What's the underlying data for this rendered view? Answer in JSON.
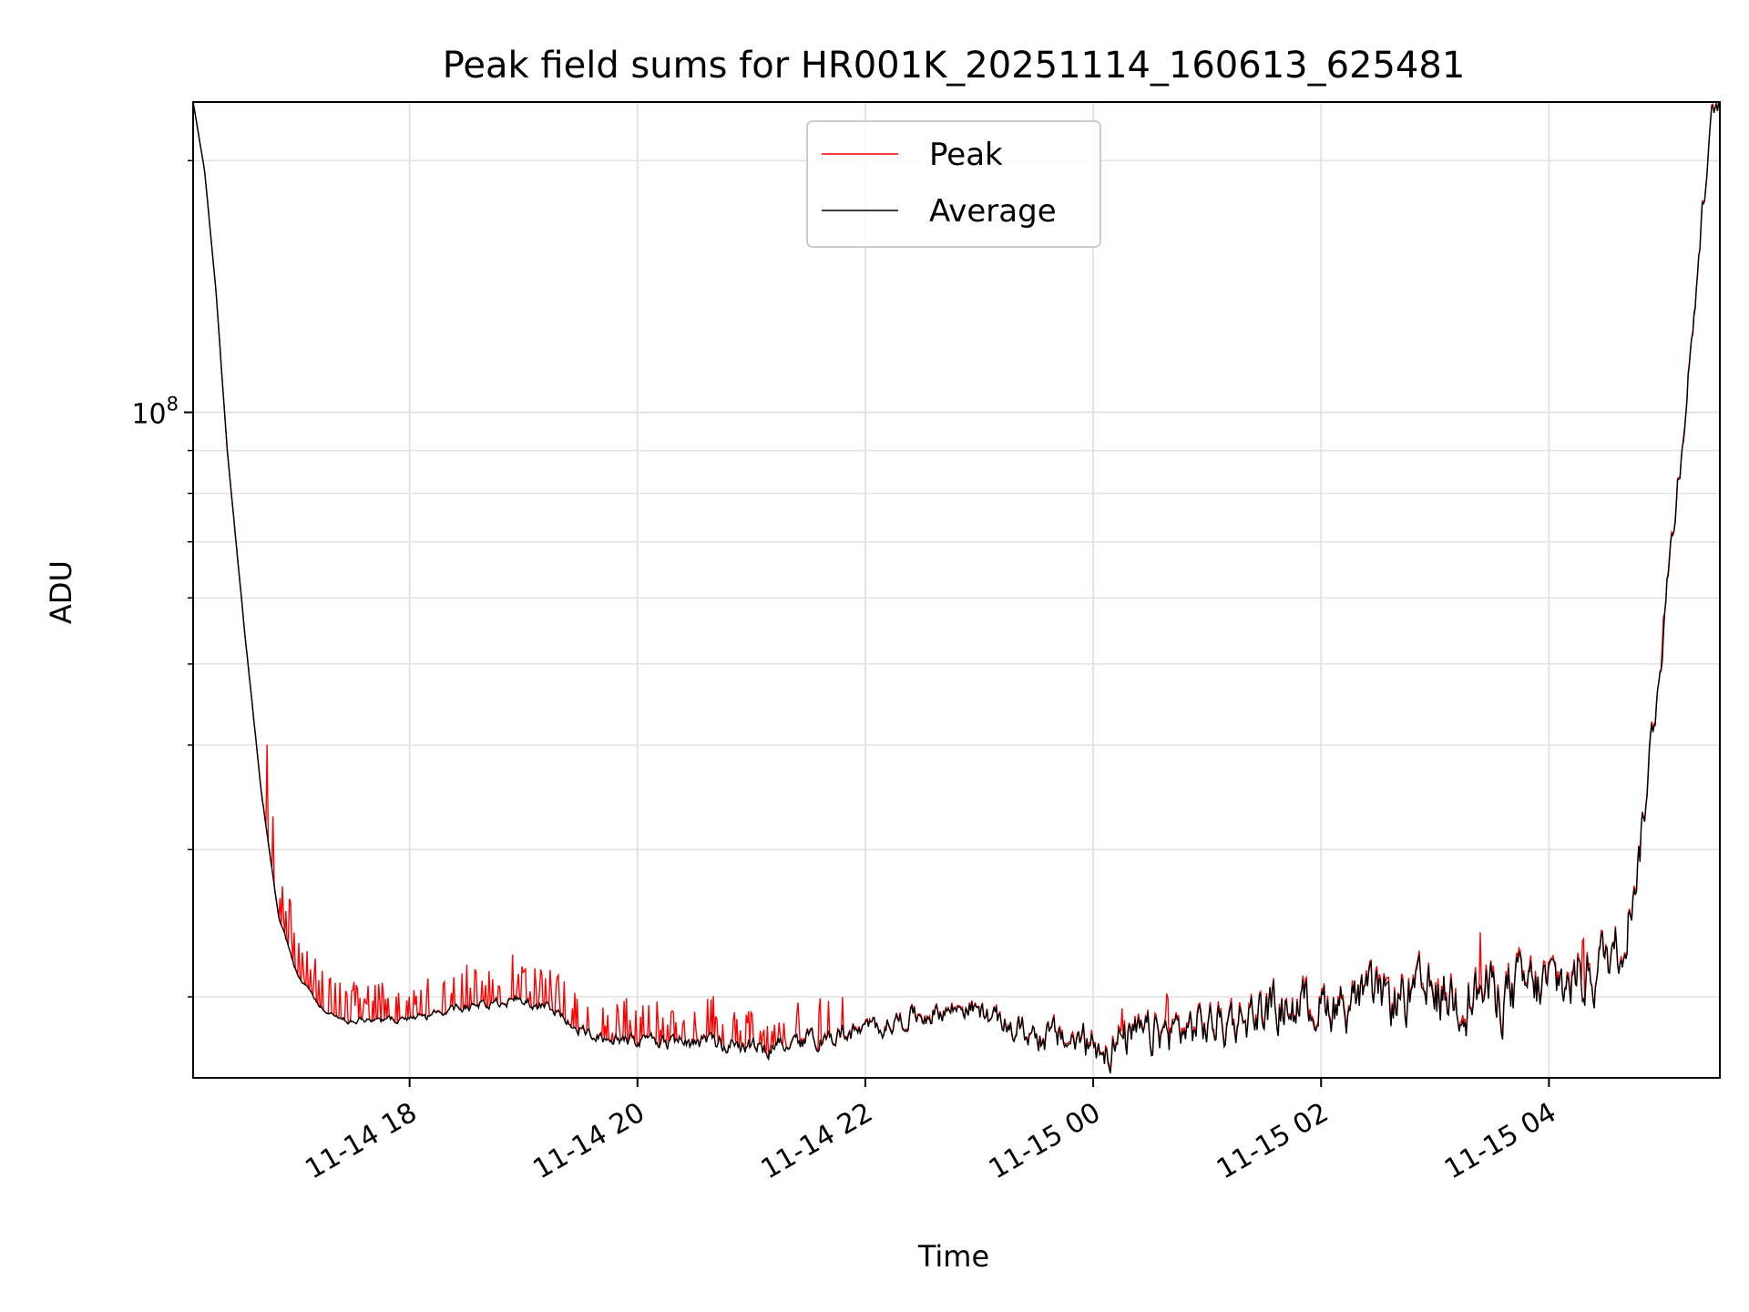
{
  "chart_data": {
    "type": "line",
    "title": "Peak field sums for HR001K_20251114_160613_625481",
    "xlabel": "Time",
    "ylabel": "ADU",
    "yscale": "log",
    "grid": true,
    "legend_position": "top-center",
    "x_unit": "hours since 2025-11-14 16:06",
    "xlim": [
      0.0,
      13.4
    ],
    "ylim": [
      16000000.0,
      235000000.0
    ],
    "x_ticks": [
      {
        "label": "11-14 18",
        "x": 1.9
      },
      {
        "label": "11-14 20",
        "x": 3.9
      },
      {
        "label": "11-14 22",
        "x": 5.9
      },
      {
        "label": "11-15 00",
        "x": 7.9
      },
      {
        "label": "11-15 02",
        "x": 9.9
      },
      {
        "label": "11-15 04",
        "x": 11.9
      }
    ],
    "y_major_ticks": [
      {
        "value": 100000000,
        "base": "10",
        "exp": "8"
      }
    ],
    "y_minor_ticks": [
      20000000,
      30000000,
      40000000,
      50000000,
      60000000,
      70000000,
      80000000,
      90000000,
      200000000
    ],
    "colors": {
      "peak": "#ff0000",
      "average": "#000000",
      "grid": "#e3e3e3"
    },
    "series": [
      {
        "name": "Peak",
        "color": "#ff0000"
      },
      {
        "name": "Average",
        "color": "#000000"
      }
    ],
    "average_anchors": [
      [
        0.0,
        235000000
      ],
      [
        0.1,
        195000000
      ],
      [
        0.2,
        140000000
      ],
      [
        0.3,
        90000000
      ],
      [
        0.45,
        55000000
      ],
      [
        0.6,
        35000000
      ],
      [
        0.75,
        25000000
      ],
      [
        0.9,
        21500000
      ],
      [
        1.1,
        19500000
      ],
      [
        1.3,
        18800000
      ],
      [
        1.6,
        18700000
      ],
      [
        2.0,
        18900000
      ],
      [
        2.5,
        19600000
      ],
      [
        2.9,
        19800000
      ],
      [
        3.2,
        19200000
      ],
      [
        3.5,
        17900000
      ],
      [
        4.0,
        17700000
      ],
      [
        4.5,
        17600000
      ],
      [
        5.0,
        17400000
      ],
      [
        5.3,
        17800000
      ],
      [
        5.8,
        18100000
      ],
      [
        6.3,
        18900000
      ],
      [
        6.8,
        19500000
      ],
      [
        7.2,
        18300000
      ],
      [
        7.6,
        17800000
      ],
      [
        8.0,
        17500000
      ],
      [
        8.5,
        18100000
      ],
      [
        9.0,
        18600000
      ],
      [
        9.5,
        19400000
      ],
      [
        10.0,
        19700000
      ],
      [
        10.5,
        19900000
      ],
      [
        11.0,
        20100000
      ],
      [
        11.5,
        20300000
      ],
      [
        12.0,
        20700000
      ],
      [
        12.3,
        21600000
      ],
      [
        12.55,
        23500000
      ],
      [
        12.7,
        30000000
      ],
      [
        12.85,
        47000000
      ],
      [
        13.0,
        75000000
      ],
      [
        13.15,
        120000000
      ],
      [
        13.25,
        175000000
      ],
      [
        13.33,
        225000000
      ],
      [
        13.4,
        235000000
      ]
    ],
    "average_noise_profile": [
      [
        0.0,
        0.0
      ],
      [
        1.0,
        0.005
      ],
      [
        2.0,
        0.008
      ],
      [
        3.0,
        0.012
      ],
      [
        4.0,
        0.014
      ],
      [
        5.0,
        0.02
      ],
      [
        6.0,
        0.022
      ],
      [
        7.0,
        0.025
      ],
      [
        8.0,
        0.045
      ],
      [
        9.0,
        0.05
      ],
      [
        10.0,
        0.055
      ],
      [
        11.0,
        0.065
      ],
      [
        12.0,
        0.07
      ],
      [
        12.5,
        0.06
      ],
      [
        13.0,
        0.04
      ],
      [
        13.4,
        0.02
      ]
    ],
    "peak_spikes": [
      [
        0.65,
        1.28
      ],
      [
        0.7,
        1.18
      ],
      [
        0.78,
        1.12
      ],
      [
        0.85,
        1.15
      ],
      [
        1.0,
        1.1
      ],
      [
        1.2,
        1.1
      ],
      [
        1.4,
        1.09
      ],
      [
        1.6,
        1.1
      ],
      [
        1.8,
        1.08
      ],
      [
        2.0,
        1.07
      ],
      [
        2.2,
        1.09
      ],
      [
        2.4,
        1.12
      ],
      [
        2.6,
        1.11
      ],
      [
        2.8,
        1.13
      ],
      [
        3.0,
        1.11
      ],
      [
        3.2,
        1.1
      ],
      [
        3.35,
        1.1
      ],
      [
        3.6,
        1.1
      ],
      [
        3.8,
        1.12
      ],
      [
        4.0,
        1.09
      ],
      [
        4.2,
        1.07
      ],
      [
        4.4,
        1.08
      ],
      [
        4.6,
        1.08
      ],
      [
        4.8,
        1.06
      ],
      [
        5.0,
        1.05
      ],
      [
        5.5,
        1.12
      ],
      [
        5.7,
        1.08
      ],
      [
        8.15,
        1.08
      ],
      [
        8.55,
        1.1
      ],
      [
        11.3,
        1.16
      ],
      [
        12.2,
        1.18
      ],
      [
        12.9,
        1.05
      ]
    ]
  }
}
